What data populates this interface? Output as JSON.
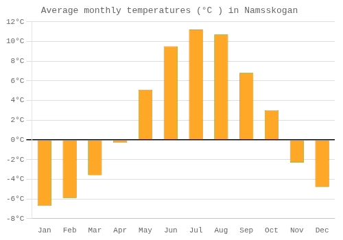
{
  "chart_data": {
    "type": "bar",
    "title": "Average monthly temperatures (°C ) in Namsskogan",
    "categories": [
      "Jan",
      "Feb",
      "Mar",
      "Apr",
      "May",
      "Jun",
      "Jul",
      "Aug",
      "Sep",
      "Oct",
      "Nov",
      "Dec"
    ],
    "values": [
      -6.7,
      -5.9,
      -3.6,
      -0.3,
      5.1,
      9.5,
      11.2,
      10.7,
      6.8,
      3.0,
      -2.3,
      -4.8
    ],
    "color": "#FFA726",
    "ylim": [
      -8,
      12
    ],
    "yticks": [
      {
        "value": -8,
        "label": "-8°C"
      },
      {
        "value": -6,
        "label": "-6°C"
      },
      {
        "value": -4,
        "label": "-4°C"
      },
      {
        "value": -2,
        "label": "-2°C"
      },
      {
        "value": 0,
        "label": "0°C"
      },
      {
        "value": 2,
        "label": "2°C"
      },
      {
        "value": 4,
        "label": "4°C"
      },
      {
        "value": 6,
        "label": "6°C"
      },
      {
        "value": 8,
        "label": "8°C"
      },
      {
        "value": 10,
        "label": "10°C"
      },
      {
        "value": 12,
        "label": "12°C"
      }
    ],
    "grid": true
  }
}
